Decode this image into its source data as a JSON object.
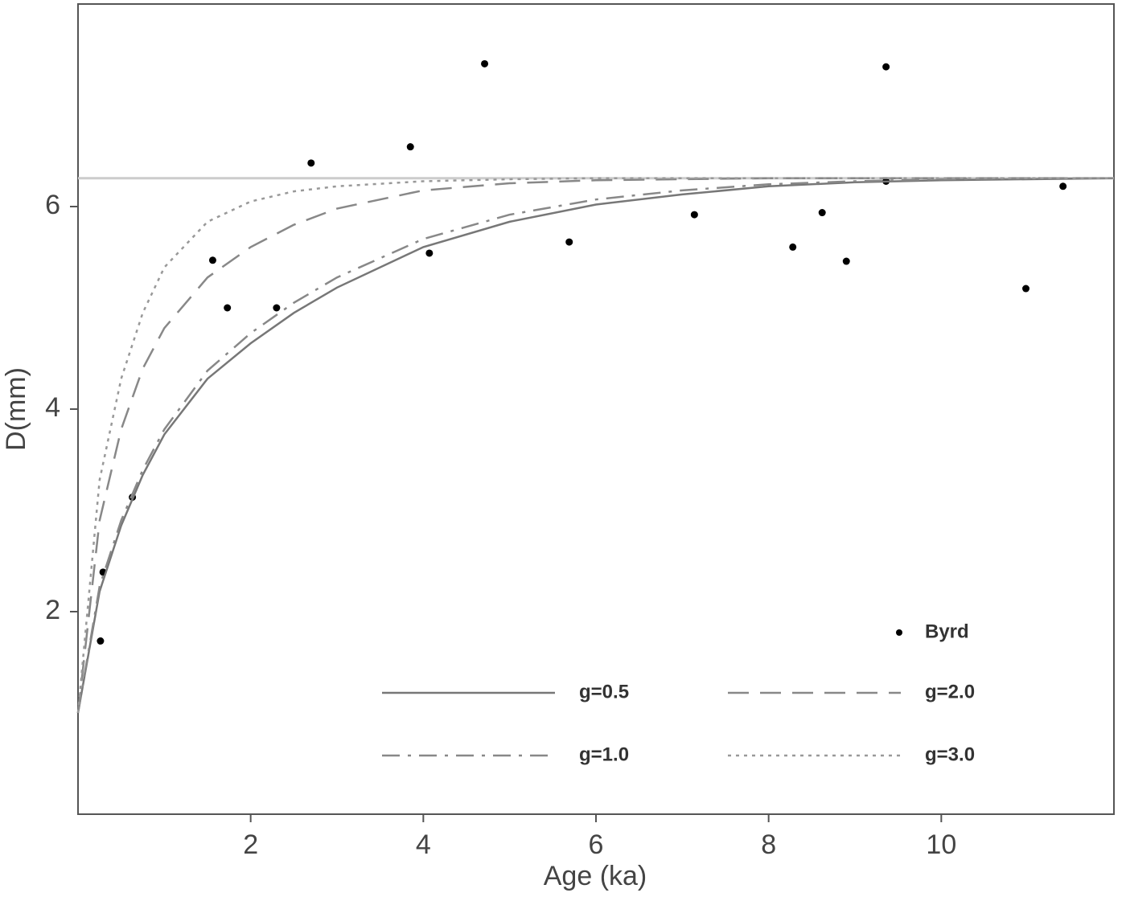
{
  "chart_data": {
    "type": "scatter",
    "x_label": "Age (ka)",
    "y_label": "D(mm)",
    "xlim": [
      0,
      12
    ],
    "ylim": [
      0,
      8
    ],
    "xticks": [
      2,
      4,
      6,
      8,
      10
    ],
    "yticks": [
      2,
      4,
      6
    ],
    "asymptote": 6.28,
    "asymptote_color": "#cccccc",
    "legend": "lower right",
    "series": [
      {
        "name": "Byrd",
        "type": "scatter",
        "color": "#000000",
        "x": [
          0.26,
          0.29,
          0.63,
          1.56,
          1.73,
          2.3,
          2.7,
          3.85,
          4.07,
          4.71,
          5.69,
          7.14,
          8.28,
          8.62,
          8.9,
          9.36,
          9.36,
          10.98,
          11.41
        ],
        "values": [
          1.71,
          2.39,
          3.13,
          5.47,
          5.0,
          5.0,
          6.43,
          6.59,
          5.54,
          7.41,
          5.65,
          5.92,
          5.6,
          5.94,
          5.46,
          7.38,
          6.25,
          5.19,
          6.2
        ]
      },
      {
        "name": "g=0.5",
        "type": "line",
        "color": "#777777",
        "dash": "solid",
        "x": [
          0,
          0.25,
          0.5,
          0.75,
          1,
          1.5,
          2,
          2.5,
          3,
          4,
          5,
          6,
          7,
          8,
          9,
          10,
          11,
          12
        ],
        "values": [
          1.0,
          2.2,
          2.85,
          3.35,
          3.75,
          4.3,
          4.65,
          4.95,
          5.2,
          5.6,
          5.85,
          6.02,
          6.12,
          6.2,
          6.24,
          6.26,
          6.27,
          6.28
        ]
      },
      {
        "name": "g=1.0",
        "type": "line",
        "color": "#888888",
        "dash": "dashdot",
        "x": [
          0,
          0.25,
          0.5,
          0.75,
          1,
          1.5,
          2,
          2.5,
          3,
          4,
          5,
          6,
          7,
          8,
          9,
          10,
          11,
          12
        ],
        "values": [
          1.0,
          2.25,
          2.9,
          3.4,
          3.8,
          4.38,
          4.75,
          5.05,
          5.3,
          5.68,
          5.92,
          6.07,
          6.16,
          6.22,
          6.25,
          6.27,
          6.28,
          6.28
        ]
      },
      {
        "name": "g=2.0",
        "type": "line",
        "color": "#888888",
        "dash": "dashed",
        "x": [
          0,
          0.25,
          0.5,
          0.75,
          1,
          1.5,
          2,
          2.5,
          3,
          4,
          5,
          6,
          7,
          8,
          9,
          10,
          11,
          12
        ],
        "values": [
          1.0,
          2.9,
          3.8,
          4.4,
          4.8,
          5.3,
          5.6,
          5.82,
          5.98,
          6.16,
          6.23,
          6.26,
          6.27,
          6.28,
          6.28,
          6.28,
          6.28,
          6.28
        ]
      },
      {
        "name": "g=3.0",
        "type": "line",
        "color": "#999999",
        "dash": "dotted",
        "x": [
          0,
          0.25,
          0.5,
          0.75,
          1,
          1.5,
          2,
          2.5,
          3,
          4,
          5,
          6,
          7,
          8,
          9,
          10,
          11,
          12
        ],
        "values": [
          1.0,
          3.3,
          4.3,
          4.95,
          5.4,
          5.85,
          6.05,
          6.15,
          6.2,
          6.25,
          6.27,
          6.28,
          6.28,
          6.28,
          6.28,
          6.28,
          6.28,
          6.28
        ]
      }
    ]
  }
}
